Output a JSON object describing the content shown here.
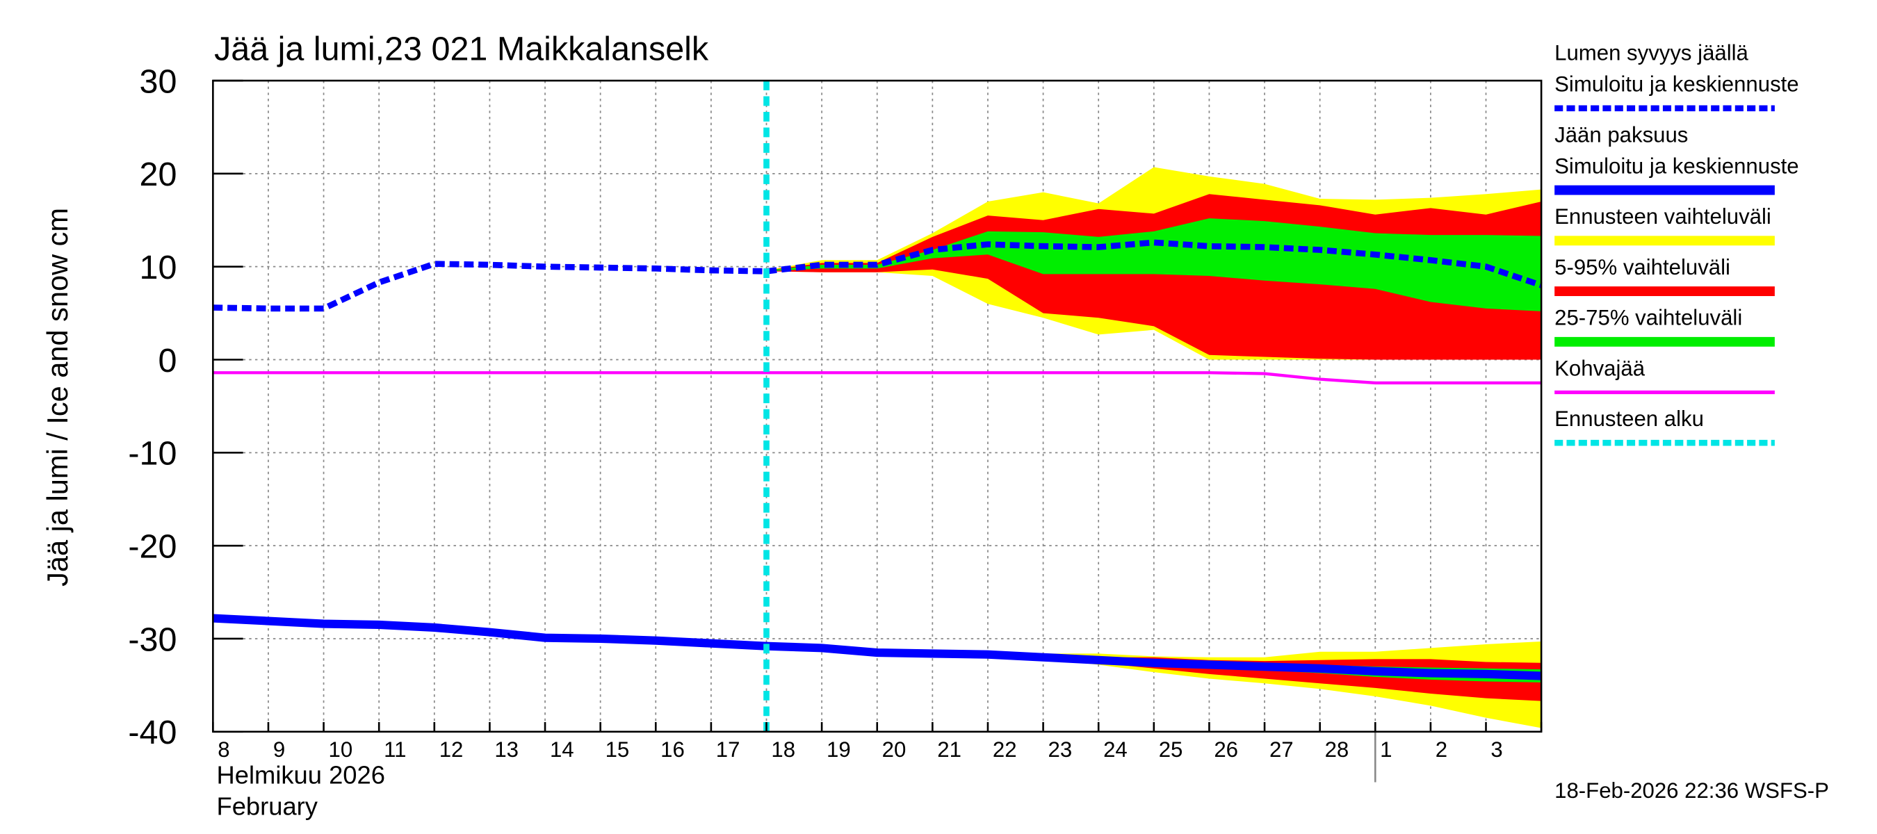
{
  "chart_data": {
    "type": "line",
    "title": "Jää ja lumi,23 021 Maikkalanselk",
    "ylabel": "Jää ja lumi / Ice and snow    cm",
    "month_labels": [
      "Helmikuu  2026",
      "February"
    ],
    "footer": "18-Feb-2026 22:36 WSFS-P",
    "categories": [
      "8",
      "9",
      "10",
      "11",
      "12",
      "13",
      "14",
      "15",
      "16",
      "17",
      "18",
      "19",
      "20",
      "21",
      "22",
      "23",
      "24",
      "25",
      "26",
      "27",
      "28",
      "1",
      "2",
      "3",
      null
    ],
    "month_break": 21,
    "ylim": [
      -40,
      30
    ],
    "yticks": [
      30,
      20,
      10,
      0,
      -10,
      -20,
      -30,
      -40
    ],
    "grid": true,
    "series": [
      {
        "name": [
          "Lumen syvyys jäällä",
          "Simuloitu ja keskiennuste"
        ],
        "kind": "line",
        "color": "#0000ff",
        "dash": true,
        "values": [
          5.6,
          5.5,
          5.5,
          8.3,
          10.3,
          10.2,
          10.0,
          9.9,
          9.8,
          9.6,
          9.5,
          10.2,
          10.2,
          11.8,
          12.4,
          12.2,
          12.1,
          12.6,
          12.2,
          12.1,
          11.8,
          11.3,
          10.7,
          10.0,
          8.0
        ]
      },
      {
        "name": [
          "Jään paksuus",
          "Simuloitu ja keskiennuste"
        ],
        "kind": "line",
        "color": "#0000ff",
        "values": [
          -27.8,
          -28.1,
          -28.4,
          -28.5,
          -28.8,
          -29.3,
          -29.9,
          -30.0,
          -30.2,
          -30.5,
          -30.8,
          -31.0,
          -31.5,
          -31.6,
          -31.7,
          -32.0,
          -32.3,
          -32.6,
          -32.8,
          -33.0,
          -33.2,
          -33.5,
          -33.7,
          -33.8,
          -34.0
        ]
      },
      {
        "name": "Ennusteen vaihteluväli",
        "kind": "band",
        "color": "#ffff00",
        "bands": [
          {
            "upper": [
              null,
              null,
              null,
              null,
              null,
              null,
              null,
              null,
              null,
              null,
              9.6,
              10.7,
              10.7,
              13.6,
              17.0,
              18.0,
              16.8,
              20.7,
              19.7,
              18.9,
              17.3,
              17.2,
              17.4,
              17.8,
              18.3
            ],
            "lower": [
              null,
              null,
              null,
              null,
              null,
              null,
              null,
              null,
              null,
              null,
              9.5,
              9.4,
              9.4,
              9.0,
              6.0,
              4.5,
              2.7,
              3.2,
              0,
              0,
              0,
              0,
              0,
              0,
              0
            ]
          },
          {
            "upper": [
              null,
              null,
              null,
              null,
              null,
              null,
              null,
              null,
              null,
              null,
              -30.8,
              -31.0,
              -31.4,
              -31.5,
              -31.6,
              -31.6,
              -31.6,
              -31.9,
              -32.0,
              -32.0,
              -31.4,
              -31.4,
              -31.0,
              -30.6,
              -30.3
            ],
            "lower": [
              null,
              null,
              null,
              null,
              null,
              null,
              null,
              null,
              null,
              null,
              -30.8,
              -31.0,
              -31.5,
              -31.7,
              -31.8,
              -32.2,
              -32.8,
              -33.6,
              -34.3,
              -34.8,
              -35.4,
              -36.2,
              -37.2,
              -38.5,
              -39.6
            ]
          }
        ]
      },
      {
        "name": "5-95% vaihteluväli",
        "kind": "band",
        "color": "#ff0000",
        "bands": [
          {
            "upper": [
              null,
              null,
              null,
              null,
              null,
              null,
              null,
              null,
              null,
              null,
              9.6,
              10.4,
              10.4,
              13.2,
              15.5,
              15.0,
              16.2,
              15.7,
              17.8,
              17.2,
              16.6,
              15.6,
              16.3,
              15.6,
              17.0
            ],
            "lower": [
              null,
              null,
              null,
              null,
              null,
              null,
              null,
              null,
              null,
              null,
              9.5,
              9.4,
              9.4,
              9.7,
              8.7,
              5.0,
              4.5,
              3.6,
              0.5,
              0.3,
              0.1,
              0,
              0,
              0,
              0
            ]
          },
          {
            "upper": [
              null,
              null,
              null,
              null,
              null,
              null,
              null,
              null,
              null,
              null,
              -30.8,
              -31.0,
              -31.4,
              -31.5,
              -31.6,
              -31.8,
              -32.0,
              -32.0,
              -32.3,
              -32.4,
              -32.3,
              -32.2,
              -32.2,
              -32.5,
              -32.6
            ],
            "lower": [
              null,
              null,
              null,
              null,
              null,
              null,
              null,
              null,
              null,
              null,
              -30.8,
              -31.0,
              -31.5,
              -31.7,
              -31.8,
              -32.2,
              -32.6,
              -33.2,
              -33.8,
              -34.3,
              -34.8,
              -35.3,
              -35.9,
              -36.4,
              -36.7
            ]
          }
        ]
      },
      {
        "name": "25-75% vaihteluväli",
        "kind": "band",
        "color": "#00ee00",
        "bands": [
          {
            "upper": [
              null,
              null,
              null,
              null,
              null,
              null,
              null,
              null,
              null,
              null,
              9.6,
              10.2,
              10.2,
              11.8,
              13.8,
              13.7,
              13.2,
              13.8,
              15.2,
              14.9,
              14.3,
              13.6,
              13.4,
              13.4,
              13.3
            ],
            "lower": [
              null,
              null,
              null,
              null,
              null,
              null,
              null,
              null,
              null,
              null,
              9.5,
              9.8,
              9.8,
              10.9,
              11.3,
              9.2,
              9.2,
              9.2,
              9.0,
              8.5,
              8.1,
              7.6,
              6.2,
              5.5,
              5.2
            ]
          },
          {
            "upper": [
              null,
              null,
              null,
              null,
              null,
              null,
              null,
              null,
              null,
              null,
              -30.8,
              -31.0,
              -31.5,
              -31.6,
              -31.7,
              -31.9,
              -32.2,
              -32.4,
              -32.5,
              -32.6,
              -32.8,
              -33.0,
              -33.1,
              -33.2,
              -33.3
            ],
            "lower": [
              null,
              null,
              null,
              null,
              null,
              null,
              null,
              null,
              null,
              null,
              -30.8,
              -31.0,
              -31.5,
              -31.6,
              -31.7,
              -32.1,
              -32.4,
              -32.8,
              -33.1,
              -33.4,
              -33.7,
              -34.1,
              -34.4,
              -34.6,
              -34.7
            ]
          }
        ]
      },
      {
        "name": "Kohvajää",
        "kind": "line",
        "color": "#ff00ff",
        "values": [
          -1.4,
          -1.4,
          -1.4,
          -1.4,
          -1.4,
          -1.4,
          -1.4,
          -1.4,
          -1.4,
          -1.4,
          -1.4,
          -1.4,
          -1.4,
          -1.4,
          -1.4,
          -1.4,
          -1.4,
          -1.4,
          -1.4,
          -1.5,
          -2.1,
          -2.5,
          -2.5,
          -2.5,
          -2.5
        ]
      },
      {
        "name": "Ennusteen alku",
        "kind": "vline",
        "color": "#00e5e5",
        "dash": true,
        "x": 10
      }
    ]
  }
}
